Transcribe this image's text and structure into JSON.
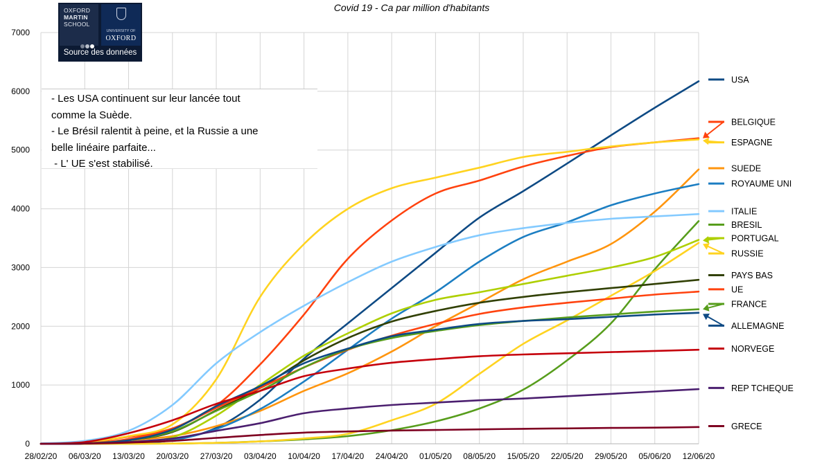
{
  "chart_data": {
    "type": "line",
    "title": "Covid 19 - Ca par million d'habitants",
    "xlabel": "",
    "ylabel": "",
    "ylim": [
      0,
      7000
    ],
    "yticks": [
      0,
      1000,
      2000,
      3000,
      4000,
      5000,
      6000,
      7000
    ],
    "grid": true,
    "legend": "right",
    "x_index": [
      0,
      7,
      14,
      21,
      28,
      35,
      42,
      49,
      56,
      63,
      70,
      77,
      84,
      91,
      98,
      105
    ],
    "categories": [
      "28/02/20",
      "06/03/20",
      "13/03/20",
      "20/03/20",
      "27/03/20",
      "03/04/20",
      "10/04/20",
      "17/04/20",
      "24/04/20",
      "01/05/20",
      "08/05/20",
      "15/05/20",
      "22/05/20",
      "29/05/20",
      "05/06/20",
      "12/06/20"
    ],
    "series": [
      {
        "name": "USA",
        "color": "#0e4a84",
        "label_y": 6200,
        "values": [
          0,
          3,
          18,
          60,
          270,
          750,
          1450,
          2050,
          2650,
          3250,
          3850,
          4300,
          4770,
          5250,
          5720,
          6170
        ]
      },
      {
        "name": "BELGIQUE",
        "color": "#ff420e",
        "label_y": 5480,
        "arrow_y": 5200,
        "values": [
          0,
          20,
          120,
          260,
          650,
          1350,
          2200,
          3150,
          3800,
          4260,
          4480,
          4720,
          4900,
          5050,
          5130,
          5200
        ]
      },
      {
        "name": "ESPAGNE",
        "color": "#ffd320",
        "label_y": 5130,
        "arrow_y": 5160,
        "values": [
          0,
          30,
          130,
          330,
          1100,
          2500,
          3400,
          4000,
          4350,
          4530,
          4700,
          4880,
          4970,
          5060,
          5130,
          5180
        ]
      },
      {
        "name": "SUEDE",
        "color": "#ff950e",
        "label_y": 4690,
        "values": [
          0,
          15,
          60,
          130,
          300,
          560,
          900,
          1200,
          1570,
          2000,
          2400,
          2800,
          3100,
          3400,
          3950,
          4670
        ]
      },
      {
        "name": "ROYAUME UNI",
        "color": "#1c7ec2",
        "label_y": 4430,
        "values": [
          0,
          2,
          15,
          60,
          250,
          590,
          1060,
          1600,
          2130,
          2580,
          3100,
          3520,
          3770,
          4060,
          4260,
          4420
        ]
      },
      {
        "name": "ITALIE",
        "color": "#83caff",
        "label_y": 3960,
        "values": [
          5,
          50,
          220,
          660,
          1370,
          1900,
          2350,
          2750,
          3100,
          3350,
          3550,
          3670,
          3760,
          3830,
          3870,
          3910
        ]
      },
      {
        "name": "BRESIL",
        "color": "#579d1c",
        "label_y": 3730,
        "values": [
          0,
          0,
          0,
          3,
          15,
          40,
          75,
          130,
          230,
          380,
          600,
          920,
          1420,
          2050,
          2970,
          3790
        ]
      },
      {
        "name": "PORTUGAL",
        "color": "#aecf00",
        "label_y": 3500,
        "arrow_y": 3460,
        "values": [
          0,
          0,
          30,
          110,
          480,
          1000,
          1500,
          1880,
          2220,
          2450,
          2580,
          2720,
          2860,
          3000,
          3180,
          3470
        ]
      },
      {
        "name": "RUSSIE",
        "color": "#ffd320",
        "label_y": 3240,
        "arrow_y": 3400,
        "values": [
          0,
          0,
          0,
          3,
          15,
          40,
          90,
          170,
          400,
          680,
          1190,
          1700,
          2100,
          2520,
          2940,
          3420
        ]
      },
      {
        "name": "PAYS BAS",
        "color": "#314004",
        "label_y": 2870,
        "values": [
          0,
          5,
          60,
          200,
          570,
          950,
          1420,
          1800,
          2080,
          2260,
          2400,
          2500,
          2580,
          2650,
          2720,
          2790
        ]
      },
      {
        "name": "UE",
        "color": "#ff420e",
        "label_y": 2630,
        "values": [
          0,
          5,
          80,
          260,
          610,
          950,
          1300,
          1600,
          1840,
          2040,
          2210,
          2320,
          2400,
          2470,
          2540,
          2590
        ]
      },
      {
        "name": "FRANCE",
        "color": "#579d1c",
        "label_y": 2380,
        "arrow_y": 2290,
        "values": [
          0,
          5,
          60,
          210,
          560,
          900,
          1300,
          1610,
          1800,
          1920,
          2020,
          2090,
          2150,
          2200,
          2250,
          2290
        ]
      },
      {
        "name": "ALLEMAGNE",
        "color": "#0e4a84",
        "label_y": 2010,
        "arrow_y": 2210,
        "values": [
          0,
          5,
          60,
          240,
          640,
          980,
          1370,
          1620,
          1830,
          1940,
          2040,
          2090,
          2120,
          2160,
          2200,
          2230
        ]
      },
      {
        "name": "NORVEGE",
        "color": "#c5000b",
        "label_y": 1620,
        "values": [
          0,
          30,
          180,
          400,
          680,
          900,
          1150,
          1280,
          1380,
          1440,
          1490,
          1520,
          1540,
          1560,
          1580,
          1600
        ]
      },
      {
        "name": "REP TCHEQUE",
        "color": "#4b1f6f",
        "label_y": 950,
        "values": [
          0,
          3,
          30,
          90,
          220,
          350,
          520,
          600,
          660,
          700,
          740,
          770,
          810,
          850,
          890,
          930
        ]
      },
      {
        "name": "GRECE",
        "color": "#7e0021",
        "label_y": 300,
        "values": [
          0,
          3,
          20,
          50,
          100,
          150,
          190,
          210,
          225,
          235,
          245,
          255,
          262,
          270,
          275,
          285
        ]
      }
    ]
  },
  "logo": {
    "line1": "OXFORD",
    "line2": "MARTIN",
    "line3": "SCHOOL",
    "university": "UNIVERSITY OF",
    "oxford": "OXFORD",
    "source": "Source des données"
  },
  "note": {
    "line1": "- Les USA continuent sur leur lancée tout",
    "line2": "comme la Suède.",
    "line3": "- Le Brésil ralentit à peine, et la Russie a une",
    "line4": "belle linéaire parfaite...",
    "line5": " - L' UE s'est stabilisé."
  }
}
